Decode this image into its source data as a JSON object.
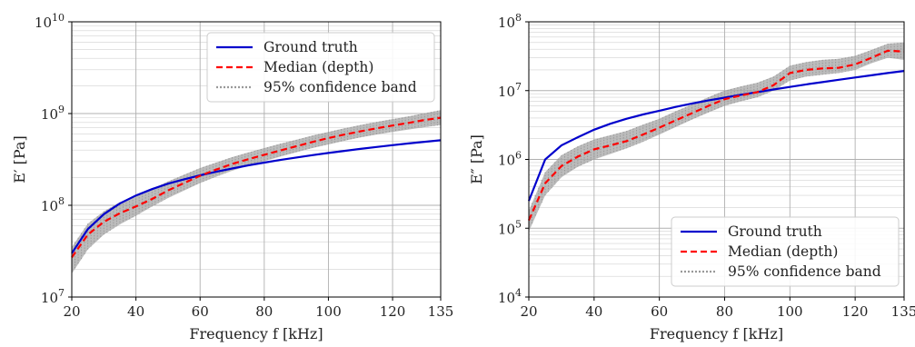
{
  "chart_data": [
    {
      "type": "line",
      "title": "",
      "xlabel": "Frequency f [kHz]",
      "ylabel": "E′ [Pa]",
      "xlim": [
        20,
        135
      ],
      "ylim": [
        10000000,
        10000000000
      ],
      "yscale": "log",
      "x_ticks": [
        20,
        40,
        60,
        80,
        100,
        120,
        135
      ],
      "x_tick_labels": [
        "20",
        "40",
        "60",
        "80",
        "100",
        "120",
        "135"
      ],
      "y_tick_labels": [
        {
          "base": "10",
          "exp": "7"
        },
        {
          "base": "10",
          "exp": "8"
        },
        {
          "base": "10",
          "exp": "9"
        },
        {
          "base": "10",
          "exp": "10"
        }
      ],
      "y_tick_values": [
        10000000,
        100000000,
        1000000000,
        10000000000
      ],
      "grid": true,
      "legend_position": "top-right",
      "x": [
        20,
        25,
        30,
        35,
        40,
        45,
        50,
        55,
        60,
        65,
        70,
        75,
        80,
        85,
        90,
        95,
        100,
        105,
        110,
        115,
        120,
        125,
        130,
        135
      ],
      "series": [
        {
          "name": "Ground truth",
          "color": "#0000cc",
          "style": "solid",
          "values": [
            30000000,
            55000000,
            80000000,
            105000000,
            128000000,
            150000000,
            172000000,
            192000000,
            212000000,
            232000000,
            252000000,
            272000000,
            292000000,
            312000000,
            332000000,
            352000000,
            372000000,
            392000000,
            412000000,
            432000000,
            452000000,
            472000000,
            492000000,
            512000000
          ]
        },
        {
          "name": "Median (depth)",
          "color": "#ff0000",
          "style": "dashed",
          "values": [
            27000000,
            48000000,
            66000000,
            82000000,
            97000000,
            117000000,
            145000000,
            175000000,
            210000000,
            245000000,
            282000000,
            318000000,
            355000000,
            395000000,
            440000000,
            490000000,
            540000000,
            590000000,
            640000000,
            690000000,
            740000000,
            790000000,
            850000000,
            900000000
          ]
        },
        {
          "name": "95% confidence band",
          "color": "#999999",
          "style": "dotted",
          "lower": [
            18000000,
            33000000,
            48000000,
            62000000,
            77000000,
            97000000,
            120000000,
            145000000,
            175000000,
            205000000,
            238000000,
            270000000,
            302000000,
            340000000,
            378000000,
            420000000,
            460000000,
            505000000,
            550000000,
            590000000,
            630000000,
            670000000,
            710000000,
            750000000
          ],
          "upper": [
            35000000,
            63000000,
            86000000,
            108000000,
            127000000,
            150000000,
            182000000,
            215000000,
            255000000,
            292000000,
            335000000,
            376000000,
            420000000,
            468000000,
            518000000,
            575000000,
            630000000,
            690000000,
            750000000,
            810000000,
            870000000,
            930000000,
            1010000000,
            1090000000
          ]
        }
      ]
    },
    {
      "type": "line",
      "title": "",
      "xlabel": "Frequency f [kHz]",
      "ylabel": "E″ [Pa]",
      "xlim": [
        20,
        135
      ],
      "ylim": [
        10000,
        100000000
      ],
      "yscale": "log",
      "x_ticks": [
        20,
        40,
        60,
        80,
        100,
        120,
        135
      ],
      "x_tick_labels": [
        "20",
        "40",
        "60",
        "80",
        "100",
        "120",
        "135"
      ],
      "y_tick_labels": [
        {
          "base": "10",
          "exp": "4"
        },
        {
          "base": "10",
          "exp": "5"
        },
        {
          "base": "10",
          "exp": "6"
        },
        {
          "base": "10",
          "exp": "7"
        },
        {
          "base": "10",
          "exp": "8"
        }
      ],
      "y_tick_values": [
        10000,
        100000,
        1000000,
        10000000,
        100000000
      ],
      "grid": true,
      "legend_position": "bottom-right",
      "x": [
        20,
        25,
        30,
        35,
        40,
        45,
        50,
        55,
        60,
        65,
        70,
        75,
        80,
        85,
        90,
        95,
        100,
        105,
        110,
        115,
        120,
        125,
        130,
        135
      ],
      "series": [
        {
          "name": "Ground truth",
          "color": "#0000cc",
          "style": "solid",
          "values": [
            250000,
            1000000,
            1600000,
            2100000,
            2700000,
            3300000,
            3900000,
            4500000,
            5100000,
            5800000,
            6500000,
            7200000,
            7900000,
            8700000,
            9500000,
            10400000,
            11300000,
            12300000,
            13300000,
            14400000,
            15500000,
            16700000,
            18000000,
            19300000
          ]
        },
        {
          "name": "Median (depth)",
          "color": "#ff0000",
          "style": "dashed",
          "values": [
            130000,
            450000,
            800000,
            1100000,
            1400000,
            1600000,
            1850000,
            2300000,
            2900000,
            3700000,
            4700000,
            6000000,
            7500000,
            8500000,
            9500000,
            12000000,
            18000000,
            20000000,
            21000000,
            21500000,
            24000000,
            30000000,
            38000000,
            37000000
          ]
        },
        {
          "name": "95% confidence band",
          "color": "#999999",
          "style": "dotted",
          "lower": [
            90000,
            300000,
            550000,
            780000,
            1000000,
            1200000,
            1450000,
            1800000,
            2300000,
            2950000,
            3800000,
            4800000,
            6000000,
            7000000,
            8000000,
            10000000,
            14000000,
            16000000,
            17000000,
            18000000,
            20000000,
            25000000,
            30000000,
            28000000
          ],
          "upper": [
            180000,
            650000,
            1150000,
            1550000,
            1950000,
            2250000,
            2600000,
            3200000,
            3900000,
            5000000,
            6300000,
            8000000,
            10000000,
            11500000,
            13000000,
            16000000,
            23000000,
            26000000,
            28000000,
            29000000,
            32000000,
            39000000,
            48000000,
            50000000
          ]
        }
      ]
    }
  ]
}
